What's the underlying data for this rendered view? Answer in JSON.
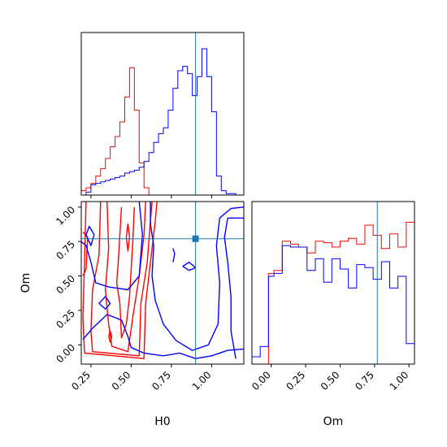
{
  "chart_data": {
    "type": "corner",
    "parameters": [
      "H0",
      "Om"
    ],
    "truth": {
      "H0": 0.9,
      "Om": 0.77
    },
    "colors": {
      "red_run": "#ff0000",
      "blue_run": "#0000ff",
      "truth": "#1f77b4"
    },
    "grid": false,
    "panels": [
      {
        "id": "hist-H0",
        "type": "step-histogram",
        "xlim": [
          0.19,
          1.2
        ],
        "xticks": [
          0.25,
          0.5,
          0.75,
          1.0
        ],
        "bin_edges": [
          0.19,
          0.22,
          0.25,
          0.28,
          0.31,
          0.34,
          0.37,
          0.4,
          0.43,
          0.46,
          0.49,
          0.52,
          0.55,
          0.58,
          0.61,
          0.64,
          0.67,
          0.7,
          0.73,
          0.76,
          0.79,
          0.82,
          0.85,
          0.88,
          0.91,
          0.94,
          0.97,
          1.0,
          1.03,
          1.06,
          1.09,
          1.12,
          1.15,
          1.18
        ],
        "series": [
          {
            "color": "red_run",
            "heights": [
              0.03,
              0.05,
              0.08,
              0.13,
              0.18,
              0.25,
              0.33,
              0.4,
              0.5,
              0.67,
              0.87,
              0.58,
              0.22,
              0.05,
              0,
              0,
              0,
              0,
              0,
              0,
              0,
              0,
              0,
              0,
              0,
              0,
              0,
              0,
              0,
              0,
              0,
              0,
              0
            ]
          },
          {
            "color": "blue_run",
            "heights": [
              0,
              0.02,
              0.07,
              0.08,
              0.09,
              0.1,
              0.11,
              0.12,
              0.13,
              0.15,
              0.16,
              0.17,
              0.19,
              0.23,
              0.29,
              0.36,
              0.42,
              0.46,
              0.58,
              0.73,
              0.85,
              0.88,
              0.83,
              0.68,
              0.81,
              1.0,
              0.81,
              0.57,
              0.13,
              0.03,
              0.01,
              0.01,
              0
            ]
          }
        ]
      },
      {
        "id": "hist-Om",
        "type": "step-histogram",
        "xlabel": "Om",
        "xlim": [
          -0.14,
          1.04
        ],
        "xticks": [
          0.0,
          0.25,
          0.5,
          0.75,
          1.0
        ],
        "tick_labels": [
          "0.00",
          "0.25",
          "0.50",
          "0.75",
          "1.00"
        ],
        "bin_edges": [
          -0.14,
          -0.08,
          -0.02,
          0.02,
          0.08,
          0.14,
          0.2,
          0.26,
          0.32,
          0.38,
          0.44,
          0.5,
          0.56,
          0.62,
          0.68,
          0.74,
          0.8,
          0.86,
          0.92,
          0.98,
          1.04
        ],
        "series": [
          {
            "color": "red_run",
            "heights": [
              0,
              0,
              0.62,
              0.64,
              0.84,
              0.82,
              0.8,
              0.76,
              0.84,
              0.83,
              0.8,
              0.84,
              0.86,
              0.82,
              0.95,
              0.88,
              0.79,
              0.89,
              0.8,
              0.97
            ]
          },
          {
            "color": "blue_run",
            "heights": [
              0.05,
              0.12,
              0.6,
              0.62,
              0.81,
              0.8,
              0.8,
              0.64,
              0.72,
              0.56,
              0.72,
              0.65,
              0.52,
              0.68,
              0.66,
              0.58,
              0.7,
              0.52,
              0.6,
              0.14
            ]
          }
        ]
      },
      {
        "id": "contour-H0-Om",
        "type": "contour",
        "xlabel": "H0",
        "ylabel": "Om",
        "xlim": [
          0.19,
          1.2
        ],
        "ylim": [
          -0.14,
          1.04
        ],
        "xticks": [
          0.25,
          0.5,
          0.75,
          1.0
        ],
        "yticks": [
          0.0,
          0.25,
          0.5,
          0.75,
          1.0
        ],
        "x_tick_labels": [
          "0.25",
          "0.50",
          "0.75",
          "1.00"
        ],
        "y_tick_labels": [
          "0.00",
          "0.25",
          "0.50",
          "0.75",
          "1.00"
        ],
        "series": [
          {
            "color": "red_run",
            "contours": [
              [
                [
                  0.35,
                  1.04
                ],
                [
                  0.36,
                  0.7
                ],
                [
                  0.34,
                  0.4
                ],
                [
                  0.36,
                  0.15
                ],
                [
                  0.38,
                  -0.01
                ],
                [
                  0.48,
                  -0.05
                ],
                [
                  0.51,
                  0.2
                ],
                [
                  0.55,
                  0.5
                ],
                [
                  0.58,
                  0.8
                ],
                [
                  0.59,
                  1.04
                ]
              ],
              [
                [
                  0.31,
                  1.04
                ],
                [
                  0.3,
                  0.65
                ],
                [
                  0.26,
                  0.4
                ],
                [
                  0.25,
                  0.1
                ],
                [
                  0.26,
                  -0.05
                ],
                [
                  0.55,
                  -0.08
                ],
                [
                  0.56,
                  0.3
                ],
                [
                  0.6,
                  0.6
                ],
                [
                  0.62,
                  0.9
                ],
                [
                  0.63,
                  1.04
                ]
              ],
              [
                [
                  0.22,
                  1.04
                ],
                [
                  0.21,
                  0.6
                ],
                [
                  0.2,
                  0.2
                ],
                [
                  0.21,
                  -0.06
                ],
                [
                  0.58,
                  -0.1
                ],
                [
                  0.59,
                  0.3
                ],
                [
                  0.62,
                  0.6
                ],
                [
                  0.65,
                  0.9
                ],
                [
                  0.66,
                  1.04
                ]
              ],
              [
                [
                  0.44,
                  1.0
                ],
                [
                  0.43,
                  0.8
                ],
                [
                  0.42,
                  0.6
                ],
                [
                  0.41,
                  0.45
                ],
                [
                  0.43,
                  0.3
                ],
                [
                  0.44,
                  0.05
                ],
                [
                  0.47,
                  0.15
                ],
                [
                  0.49,
                  0.35
                ],
                [
                  0.5,
                  0.55
                ],
                [
                  0.51,
                  0.75
                ],
                [
                  0.52,
                  1.0
                ]
              ],
              [
                [
                  0.48,
                  0.88
                ],
                [
                  0.47,
                  0.78
                ],
                [
                  0.48,
                  0.68
                ],
                [
                  0.49,
                  0.78
                ],
                [
                  0.48,
                  0.88
                ]
              ],
              [
                [
                  0.2,
                  0.82
                ],
                [
                  0.23,
                  0.78
                ],
                [
                  0.22,
                  0.55
                ],
                [
                  0.2,
                  0.5
                ]
              ],
              [
                [
                  0.36,
                  0.06
                ],
                [
                  0.37,
                  0.02
                ],
                [
                  0.38,
                  0.06
                ],
                [
                  0.37,
                  0.1
                ],
                [
                  0.36,
                  0.06
                ]
              ]
            ]
          },
          {
            "color": "blue_run",
            "contours": [
              [
                [
                  0.62,
                  1.04
                ],
                [
                  0.62,
                  0.88
                ],
                [
                  0.64,
                  0.72
                ],
                [
                  0.63,
                  0.5
                ],
                [
                  0.65,
                  0.32
                ],
                [
                  0.7,
                  0.15
                ],
                [
                  0.78,
                  0.03
                ],
                [
                  0.88,
                  -0.04
                ],
                [
                  0.98,
                  0.0
                ],
                [
                  1.04,
                  0.15
                ],
                [
                  1.05,
                  0.45
                ],
                [
                  1.03,
                  0.72
                ],
                [
                  1.05,
                  0.92
                ],
                [
                  1.12,
                  0.99
                ],
                [
                  1.2,
                  1.0
                ]
              ],
              [
                [
                  0.55,
                  1.04
                ],
                [
                  0.57,
                  0.8
                ],
                [
                  0.55,
                  0.5
                ],
                [
                  0.48,
                  0.4
                ],
                [
                  0.36,
                  0.42
                ],
                [
                  0.28,
                  0.45
                ],
                [
                  0.25,
                  0.6
                ],
                [
                  0.22,
                  0.72
                ],
                [
                  0.19,
                  0.75
                ]
              ],
              [
                [
                  0.2,
                  0.04
                ],
                [
                  0.26,
                  0.12
                ],
                [
                  0.35,
                  0.22
                ],
                [
                  0.44,
                  0.18
                ],
                [
                  0.48,
                  0.06
                ],
                [
                  0.5,
                  -0.02
                ],
                [
                  0.58,
                  -0.06
                ],
                [
                  0.7,
                  -0.08
                ],
                [
                  0.8,
                  -0.06
                ],
                [
                  0.9,
                  -0.1
                ],
                [
                  1.0,
                  -0.08
                ],
                [
                  1.1,
                  -0.04
                ],
                [
                  1.2,
                  -0.03
                ]
              ],
              [
                [
                  0.82,
                  0.57
                ],
                [
                  0.86,
                  0.54
                ],
                [
                  0.9,
                  0.56
                ],
                [
                  0.86,
                  0.6
                ],
                [
                  0.82,
                  0.57
                ]
              ],
              [
                [
                  0.76,
                  0.6
                ],
                [
                  0.77,
                  0.66
                ],
                [
                  0.76,
                  0.7
                ]
              ],
              [
                [
                  1.2,
                  0.92
                ],
                [
                  1.1,
                  0.92
                ],
                [
                  1.08,
                  0.78
                ],
                [
                  1.1,
                  0.6
                ],
                [
                  1.12,
                  0.35
                ],
                [
                  1.12,
                  0.1
                ],
                [
                  1.15,
                  -0.1
                ]
              ],
              [
                [
                  0.22,
                  0.8
                ],
                [
                  0.25,
                  0.72
                ],
                [
                  0.27,
                  0.8
                ],
                [
                  0.24,
                  0.86
                ],
                [
                  0.22,
                  0.8
                ]
              ],
              [
                [
                  0.3,
                  0.3
                ],
                [
                  0.34,
                  0.26
                ],
                [
                  0.37,
                  0.3
                ],
                [
                  0.34,
                  0.35
                ],
                [
                  0.3,
                  0.3
                ]
              ]
            ]
          }
        ]
      }
    ]
  }
}
